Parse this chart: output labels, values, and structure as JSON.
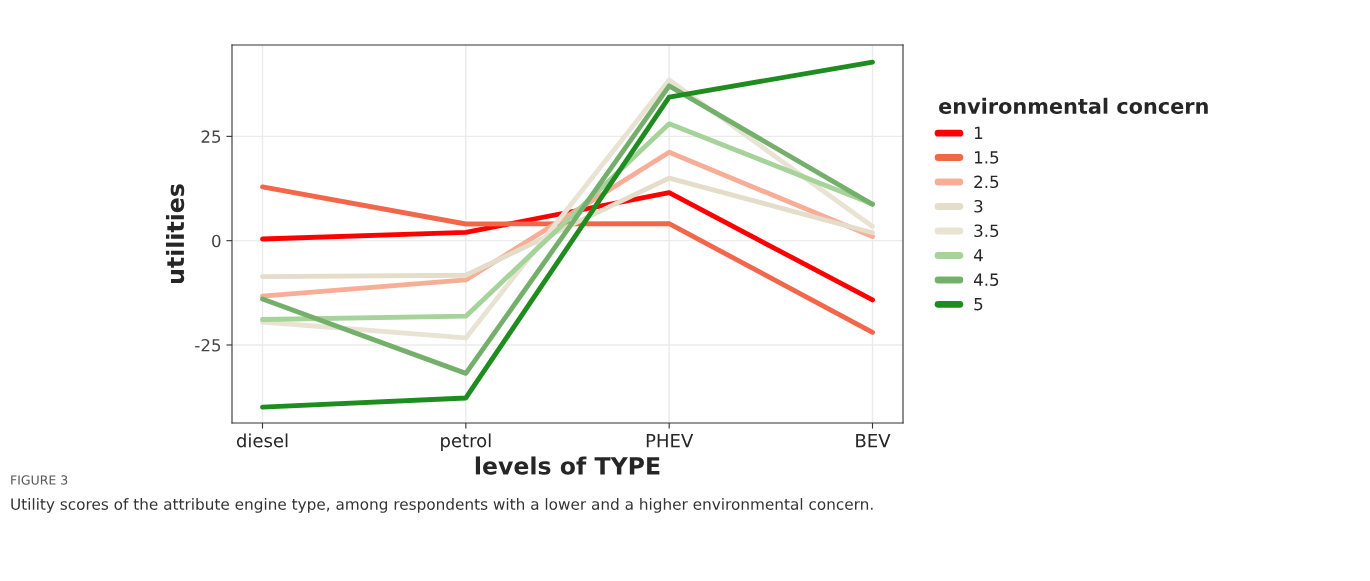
{
  "chart_data": {
    "type": "line",
    "xlabel": "levels of TYPE",
    "ylabel": "utilities",
    "legend_title": "environmental concern",
    "categories": [
      "diesel",
      "petrol",
      "PHEV",
      "BEV"
    ],
    "series": [
      {
        "name": "1",
        "color": "#ff0000",
        "values": [
          0.4,
          2.0,
          11.5,
          -14.2
        ]
      },
      {
        "name": "1.5",
        "color": "#f2664a",
        "values": [
          12.9,
          4.0,
          4.1,
          -22.0
        ]
      },
      {
        "name": "2.5",
        "color": "#f7ad96",
        "values": [
          -13.3,
          -9.4,
          21.2,
          1.0
        ]
      },
      {
        "name": "3",
        "color": "#e3ddca",
        "values": [
          -8.6,
          -8.3,
          15.0,
          1.9
        ]
      },
      {
        "name": "3.5",
        "color": "#e9e3d3",
        "values": [
          -19.5,
          -23.3,
          38.5,
          3.4
        ]
      },
      {
        "name": "4",
        "color": "#a6d39a",
        "values": [
          -18.9,
          -18.1,
          28.0,
          8.8
        ]
      },
      {
        "name": "4.5",
        "color": "#74b06c",
        "values": [
          -14.0,
          -31.8,
          37.1,
          8.7
        ]
      },
      {
        "name": "5",
        "color": "#1e8c1e",
        "values": [
          -39.9,
          -37.7,
          34.4,
          42.8
        ]
      }
    ],
    "ylim": [
      -43.7,
      46.9
    ],
    "yticks": [
      -25,
      0,
      25
    ],
    "grid": true,
    "legend": "right",
    "annotations": [
      "FIGURE 3",
      "Utility scores of the attribute engine type, among respondents with a lower and a higher environmental concern."
    ]
  }
}
